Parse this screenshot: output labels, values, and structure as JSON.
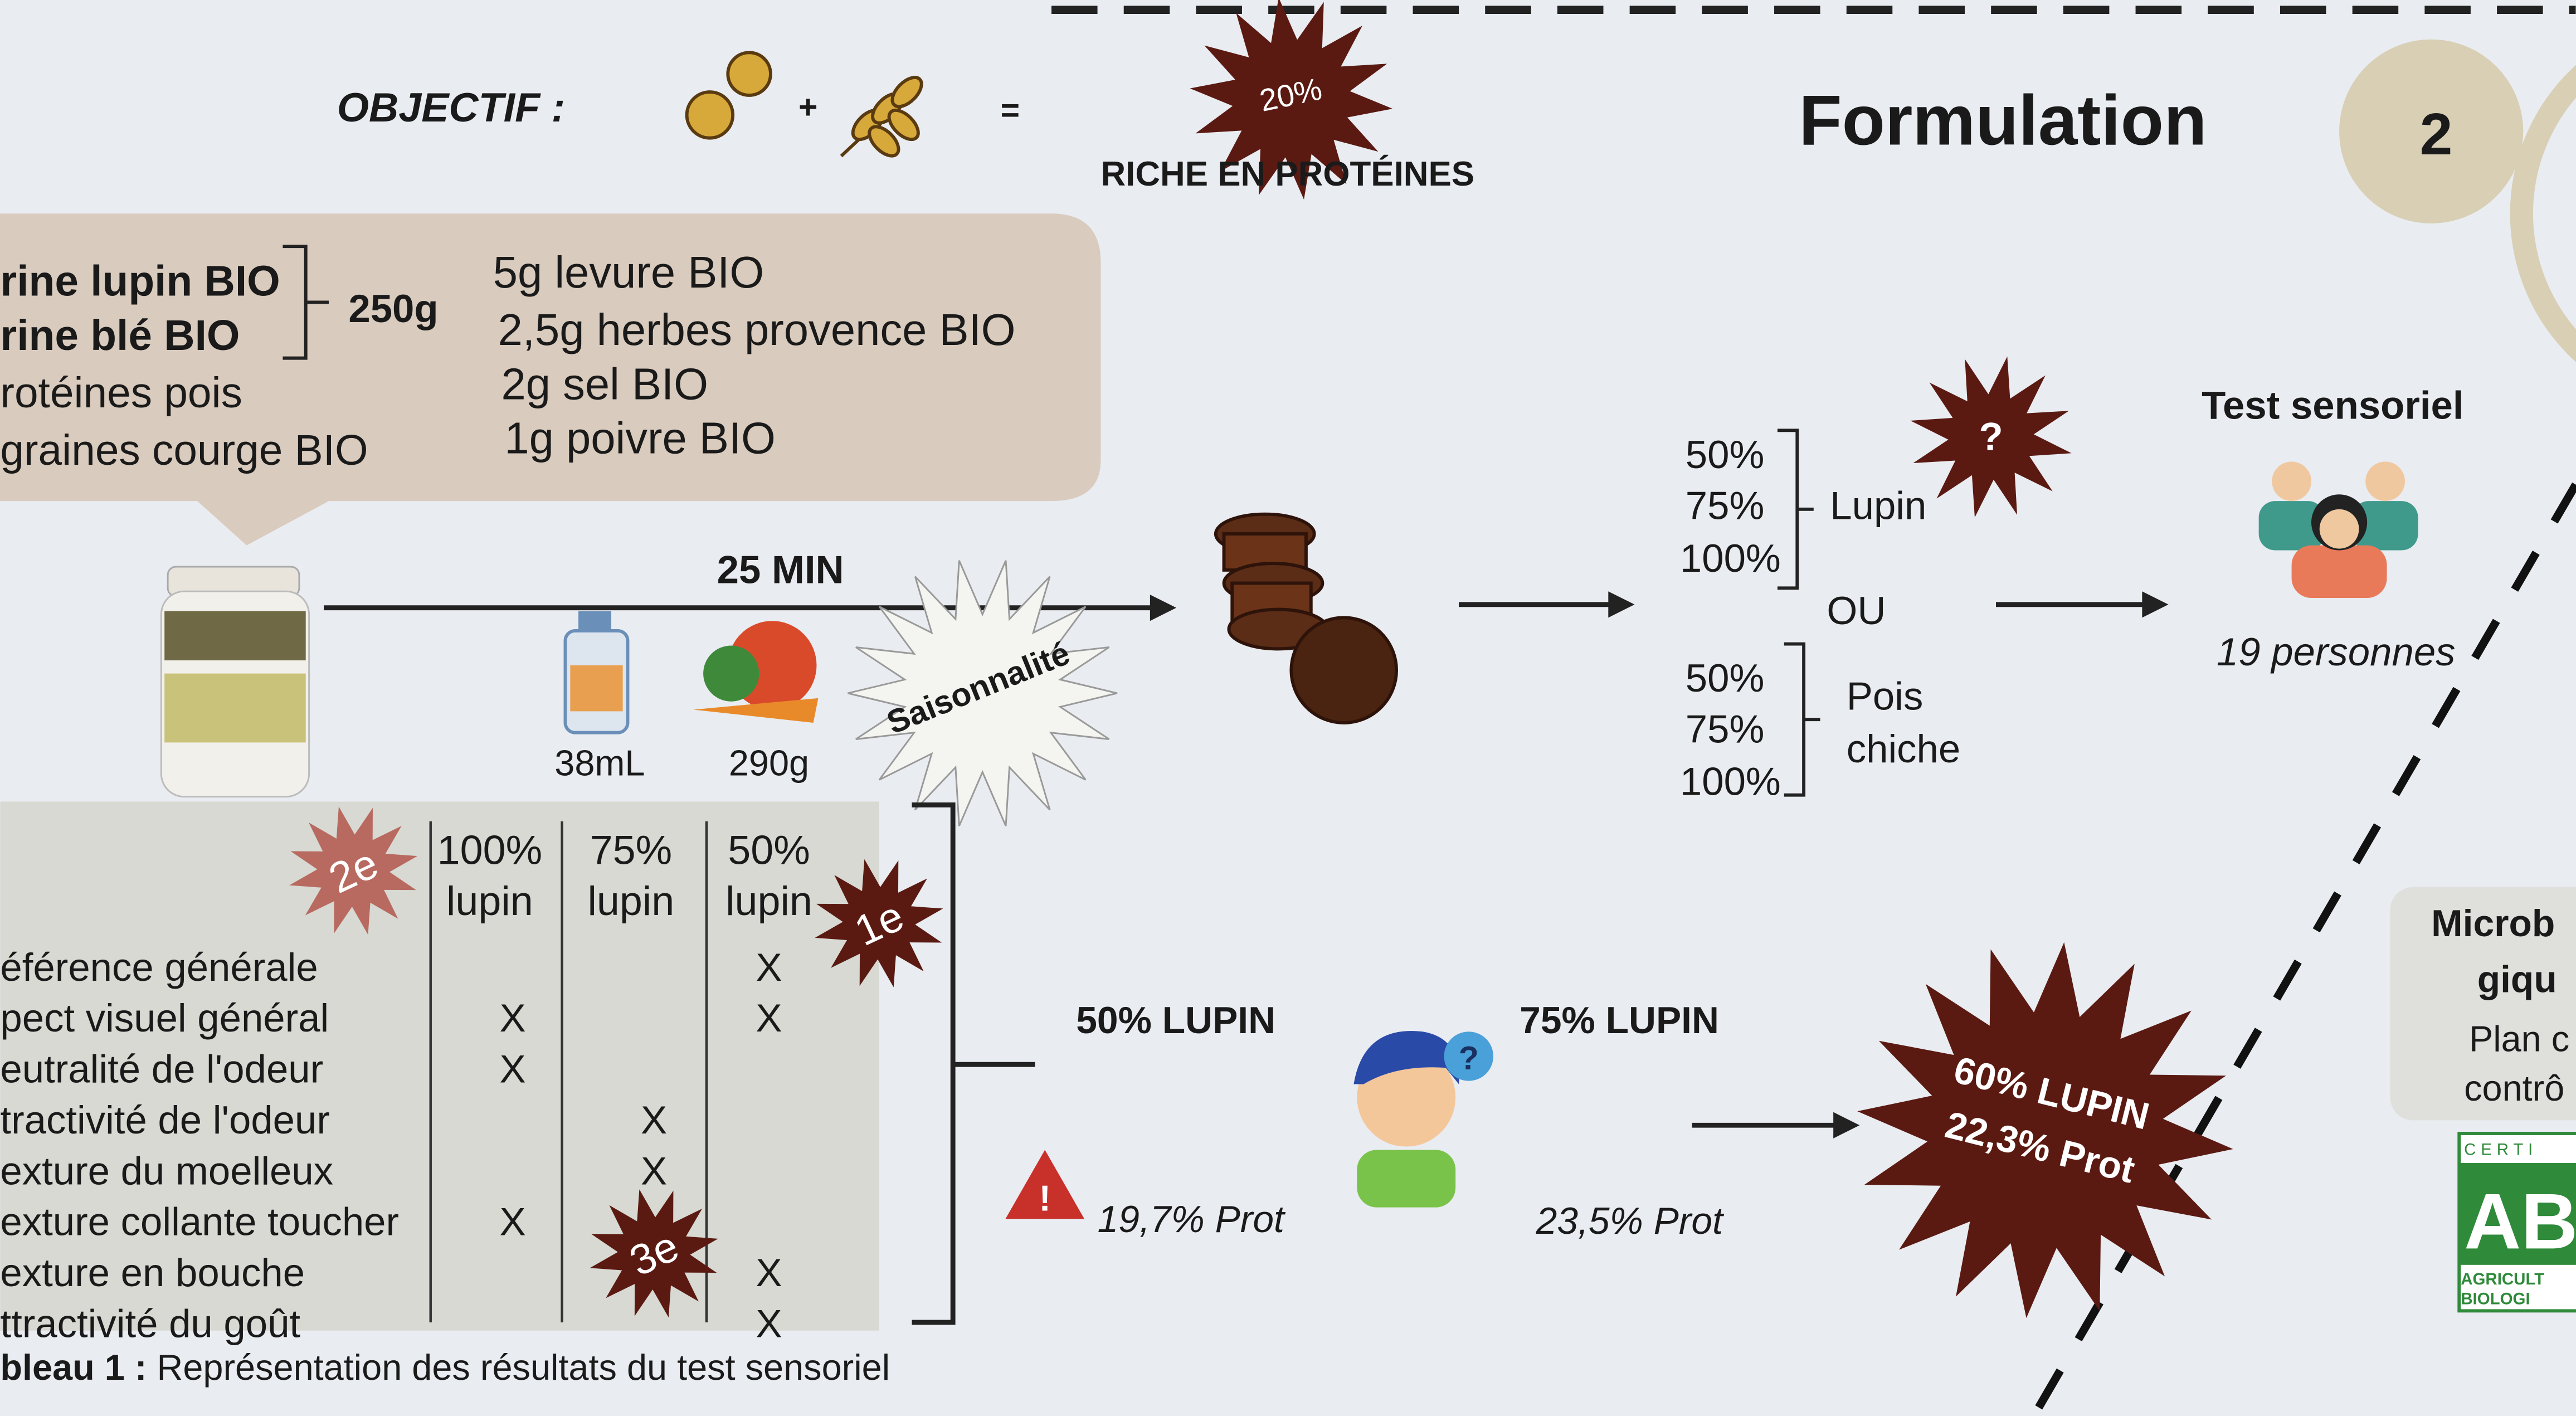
{
  "header": {
    "objective": "OBJECTIF :",
    "plus": "+",
    "equals": "=",
    "badge": "20%",
    "goal": "RICHE EN PROTÉINES",
    "title": "Formulation",
    "step": "2"
  },
  "ingredients": {
    "flours": [
      "rine lupin BIO",
      "rine blé BIO"
    ],
    "flour_quantity": "250g",
    "others": [
      "rotéines pois",
      "graines courge BIO"
    ],
    "extras": [
      "5g levure BIO",
      "2,5g herbes provence BIO",
      "2g sel BIO",
      "1g poivre BIO"
    ]
  },
  "process": {
    "time": "25 MIN",
    "oil": "38mL",
    "vegetables": "290g",
    "season": "Saisonnalité"
  },
  "variants": {
    "lupin_percents": [
      "50%",
      "75%",
      "100%"
    ],
    "lupin": "Lupin",
    "question": "?",
    "or": "OU",
    "pois_percents": [
      "50%",
      "75%",
      "100%"
    ],
    "pois": [
      "Pois",
      "chiche"
    ]
  },
  "test": {
    "title": "Test sensoriel",
    "people": "19 personnes"
  },
  "table": {
    "headers": [
      [
        "100%",
        "lupin"
      ],
      [
        "75%",
        "lupin"
      ],
      [
        "50%",
        "lupin"
      ]
    ],
    "rows": [
      {
        "label": "éférence générale",
        "marks": [
          null,
          null,
          "X"
        ]
      },
      {
        "label": "pect visuel général",
        "marks": [
          "X",
          null,
          "X"
        ]
      },
      {
        "label": "eutralité de l'odeur",
        "marks": [
          "X",
          null,
          null
        ]
      },
      {
        "label": "tractivité de l'odeur",
        "marks": [
          null,
          "X",
          null
        ]
      },
      {
        "label": "exture du moelleux",
        "marks": [
          null,
          "X",
          null
        ]
      },
      {
        "label": "exture collante toucher",
        "marks": [
          "X",
          null,
          null
        ]
      },
      {
        "label": "exture en bouche",
        "marks": [
          null,
          null,
          "X"
        ]
      },
      {
        "label": "ttractivité du goût",
        "marks": [
          null,
          null,
          "X"
        ]
      }
    ],
    "ranks": [
      "2e",
      "1e",
      "3e"
    ],
    "caption_label": "bleau 1 :",
    "caption_text": " Représentation des résultats du test sensoriel"
  },
  "results": {
    "first": "50% LUPIN",
    "first_protein": "19,7% Prot",
    "warning": "!",
    "doubt": "?",
    "second": "75% LUPIN",
    "second_protein": "23,5% Prot",
    "final": [
      "60% LUPIN",
      "22,3% Prot"
    ]
  },
  "side": {
    "micro": [
      "Microb",
      "giqu"
    ],
    "plan": [
      "Plan c",
      "contrô"
    ],
    "logo_top": "CERTI",
    "logo": "AB",
    "logo_bottom": [
      "AGRICULT",
      "BIOLOGI"
    ]
  }
}
